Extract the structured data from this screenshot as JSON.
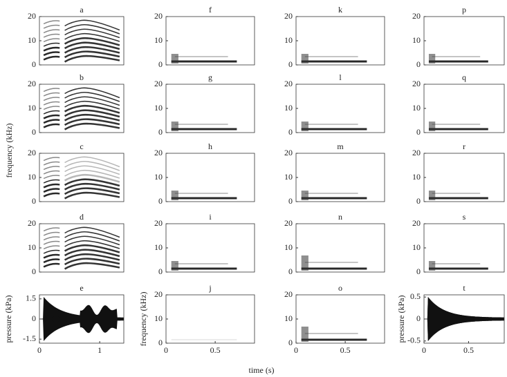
{
  "figure_labels": {
    "ylabel": "frequency (kHz)",
    "xlabel": "time (s)"
  },
  "chart_data": [
    {
      "type": "spectrogram",
      "title": "a",
      "ylim": [
        0,
        20
      ],
      "yticks": [
        0,
        10,
        20
      ],
      "xlim": [
        0,
        1.4
      ]
    },
    {
      "type": "spectrogram",
      "title": "b",
      "ylim": [
        0,
        20
      ],
      "yticks": [
        0,
        10,
        20
      ],
      "xlim": [
        0,
        1.4
      ]
    },
    {
      "type": "spectrogram",
      "title": "c",
      "ylim": [
        0,
        20
      ],
      "yticks": [
        0,
        10,
        20
      ],
      "xlim": [
        0,
        1.4
      ]
    },
    {
      "type": "spectrogram",
      "title": "d",
      "ylim": [
        0,
        20
      ],
      "yticks": [
        0,
        10,
        20
      ],
      "xlim": [
        0,
        1.4
      ]
    },
    {
      "type": "waveform",
      "title": "e",
      "ylabel": "pressure (kPa)",
      "ylim": [
        -1.8,
        1.8
      ],
      "yticks": [
        1.5,
        0,
        -1.5
      ],
      "xlim": [
        0,
        1.4
      ],
      "xticks": [
        0,
        1
      ]
    },
    {
      "type": "spectrogram",
      "title": "f",
      "ylim": [
        0,
        20
      ],
      "yticks": [
        0,
        10,
        20
      ],
      "xlim": [
        0,
        0.9
      ]
    },
    {
      "type": "spectrogram",
      "title": "g",
      "ylim": [
        0,
        20
      ],
      "yticks": [
        0,
        10,
        20
      ],
      "xlim": [
        0,
        0.9
      ]
    },
    {
      "type": "spectrogram",
      "title": "h",
      "ylim": [
        0,
        20
      ],
      "yticks": [
        0,
        10,
        20
      ],
      "xlim": [
        0,
        0.9
      ]
    },
    {
      "type": "spectrogram",
      "title": "i",
      "ylim": [
        0,
        20
      ],
      "yticks": [
        0,
        10,
        20
      ],
      "xlim": [
        0,
        0.9
      ]
    },
    {
      "type": "spectrogram",
      "title": "j",
      "ylabel": "frequency (kHz)",
      "ylim": [
        0,
        20
      ],
      "yticks": [
        0,
        10,
        20
      ],
      "xlim": [
        0,
        0.9
      ],
      "xticks": [
        0,
        0.5
      ]
    },
    {
      "type": "spectrogram",
      "title": "k",
      "ylim": [
        0,
        20
      ],
      "yticks": [
        0,
        10,
        20
      ],
      "xlim": [
        0,
        0.9
      ]
    },
    {
      "type": "spectrogram",
      "title": "l",
      "ylim": [
        0,
        20
      ],
      "yticks": [
        0,
        10,
        20
      ],
      "xlim": [
        0,
        0.9
      ]
    },
    {
      "type": "spectrogram",
      "title": "m",
      "ylim": [
        0,
        20
      ],
      "yticks": [
        0,
        10,
        20
      ],
      "xlim": [
        0,
        0.9
      ]
    },
    {
      "type": "spectrogram",
      "title": "n",
      "ylim": [
        0,
        20
      ],
      "yticks": [
        0,
        10,
        20
      ],
      "xlim": [
        0,
        0.9
      ]
    },
    {
      "type": "spectrogram",
      "title": "o",
      "ylim": [
        0,
        20
      ],
      "yticks": [
        0,
        10,
        20
      ],
      "xlim": [
        0,
        0.9
      ],
      "xticks": [
        0,
        0.5
      ]
    },
    {
      "type": "spectrogram",
      "title": "p",
      "ylim": [
        0,
        20
      ],
      "yticks": [
        0,
        10,
        20
      ],
      "xlim": [
        0,
        0.9
      ]
    },
    {
      "type": "spectrogram",
      "title": "q",
      "ylim": [
        0,
        20
      ],
      "yticks": [
        0,
        10,
        20
      ],
      "xlim": [
        0,
        0.9
      ]
    },
    {
      "type": "spectrogram",
      "title": "r",
      "ylim": [
        0,
        20
      ],
      "yticks": [
        0,
        10,
        20
      ],
      "xlim": [
        0,
        0.9
      ]
    },
    {
      "type": "spectrogram",
      "title": "s",
      "ylim": [
        0,
        20
      ],
      "yticks": [
        0,
        10,
        20
      ],
      "xlim": [
        0,
        0.9
      ]
    },
    {
      "type": "waveform",
      "title": "t",
      "ylabel": "pressure (kPa)",
      "ylim": [
        -0.55,
        0.55
      ],
      "yticks": [
        0.5,
        0,
        -0.5
      ],
      "xlim": [
        0,
        0.9
      ],
      "xticks": [
        0,
        0.5
      ]
    }
  ]
}
